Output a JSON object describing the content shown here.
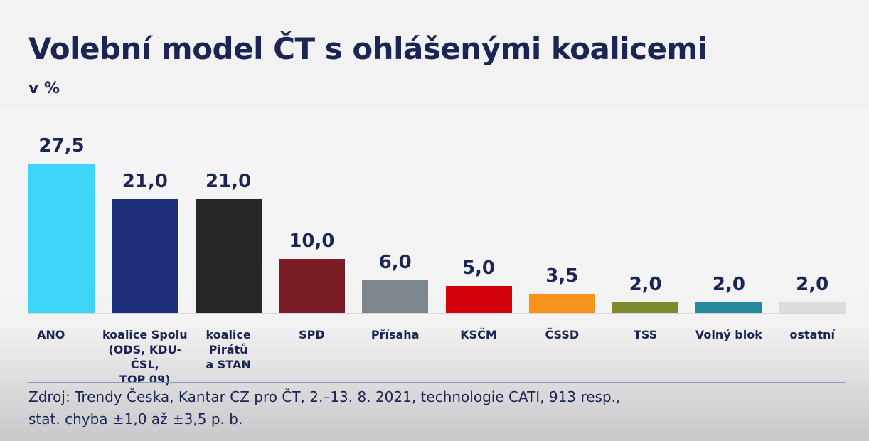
{
  "header": {
    "title": "Volební model ČT s ohlášenými koalicemi",
    "subtitle": "v %"
  },
  "chart_data": {
    "type": "bar",
    "title": "Volební model ČT s ohlášenými koalicemi",
    "ylabel": "v %",
    "ylim": [
      0,
      27.5
    ],
    "grid": false,
    "categories": [
      "ANO",
      "koalice Spolu (ODS, KDU-ČSL, TOP 09)",
      "koalice Pirátů a STAN",
      "SPD",
      "Přísaha",
      "KSČM",
      "ČSSD",
      "TSS",
      "Volný blok",
      "ostatní"
    ],
    "category_lines": [
      [
        "ANO"
      ],
      [
        "koalice Spolu",
        "(ODS, KDU-ČSL,",
        "TOP 09)"
      ],
      [
        "koalice",
        "Pirátů",
        "a STAN"
      ],
      [
        "SPD"
      ],
      [
        "Přísaha"
      ],
      [
        "KSČM"
      ],
      [
        "ČSSD"
      ],
      [
        "TSS"
      ],
      [
        "Volný blok"
      ],
      [
        "ostatní"
      ]
    ],
    "values": [
      27.5,
      21.0,
      21.0,
      10.0,
      6.0,
      5.0,
      3.5,
      2.0,
      2.0,
      2.0
    ],
    "value_labels": [
      "27,5",
      "21,0",
      "21,0",
      "10,0",
      "6,0",
      "5,0",
      "3,5",
      "2,0",
      "2,0",
      "2,0"
    ],
    "colors": [
      "#3dd5f8",
      "#1d2f7a",
      "#262626",
      "#7a1c25",
      "#7c868c",
      "#d4030b",
      "#f8941c",
      "#7f8a2f",
      "#24899a",
      "#dcdcdc"
    ]
  },
  "footer": {
    "source_line1": "Zdroj: Trendy Česka, Kantar CZ pro ČT, 2.–13. 8. 2021, technologie CATI, 913 resp.,",
    "source_line2": "stat. chyba ±1,0 až ±3,5 p. b."
  }
}
